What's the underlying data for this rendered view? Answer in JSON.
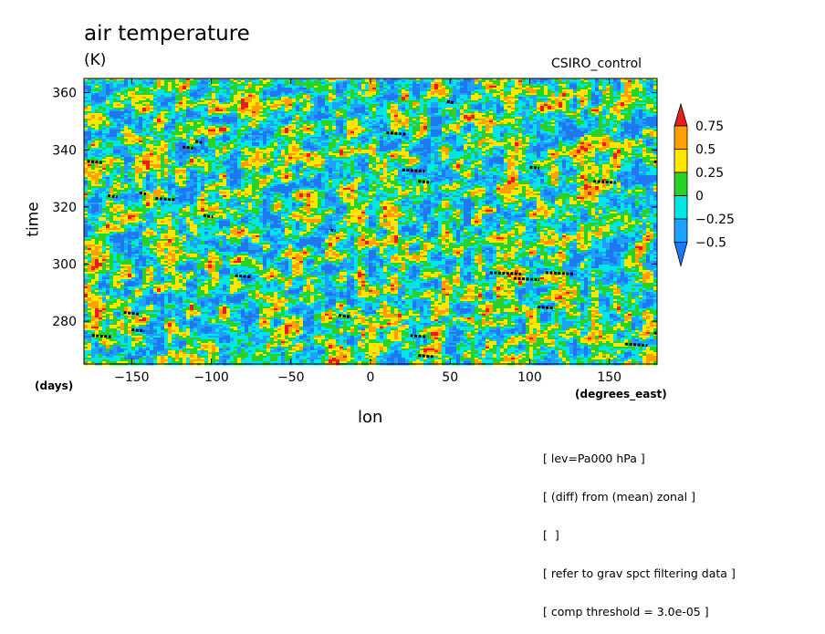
{
  "header": {
    "title": "air temperature",
    "units": "(K)",
    "dataset": "CSIRO_control"
  },
  "axes": {
    "xlabel": "lon",
    "xunits": "(degrees_east)",
    "ylabel": "time",
    "yunits": "(days)"
  },
  "notes": [
    "[ lev=Pa000 hPa ]",
    "[ (diff) from (mean) zonal ]",
    "[  ]",
    "[ refer to grav spct filtering data ]",
    "[ comp threshold = 3.0e-05 ]"
  ],
  "chart_data": {
    "type": "heatmap",
    "title": "air temperature",
    "xlabel": "lon",
    "ylabel": "time",
    "xlim": [
      -180,
      180
    ],
    "ylim": [
      265,
      365
    ],
    "x_ticks": [
      -150,
      -100,
      -50,
      0,
      50,
      100,
      150
    ],
    "x_tick_labels": [
      "−150",
      "−100",
      "−50",
      "0",
      "50",
      "100",
      "150"
    ],
    "y_ticks": [
      280,
      300,
      320,
      340,
      360
    ],
    "y_tick_labels": [
      "280",
      "300",
      "320",
      "340",
      "360"
    ],
    "colorbar": {
      "levels": [
        -0.5,
        -0.25,
        0,
        0.25,
        0.5,
        0.75
      ],
      "labels": [
        "−0.5",
        "−0.25",
        "0",
        "0.25",
        "0.5",
        "0.75"
      ],
      "colors": [
        "#1e78f0",
        "#1ea0ff",
        "#00e6e6",
        "#28d228",
        "#ffe600",
        "#ffa000",
        "#e61e1e"
      ]
    },
    "grid": false
  },
  "colors": {
    "background_field": "#1e78f0",
    "deep_blue": "#1f5fe0",
    "marker": "#000000"
  }
}
